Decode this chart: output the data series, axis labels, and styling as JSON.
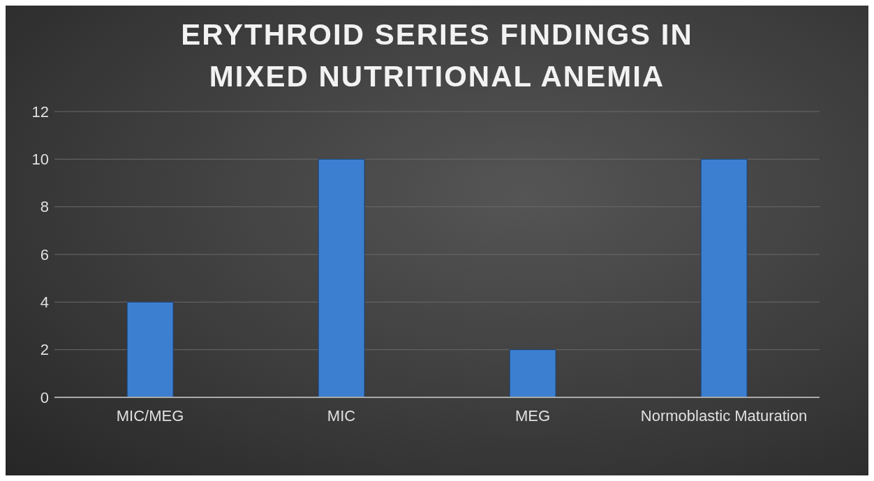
{
  "chart_data": {
    "type": "bar",
    "title": "ERYTHROID SERIES FINDINGS IN MIXED NUTRITIONAL ANEMIA",
    "categories": [
      "MIC/MEG",
      "MIC",
      "MEG",
      "Normoblastic Maturation"
    ],
    "values": [
      4,
      10,
      2,
      10
    ],
    "color": "#3c7fd0",
    "ylim": [
      0,
      12
    ],
    "yticks": [
      0,
      2,
      4,
      6,
      8,
      10,
      12
    ],
    "grid": "y"
  }
}
